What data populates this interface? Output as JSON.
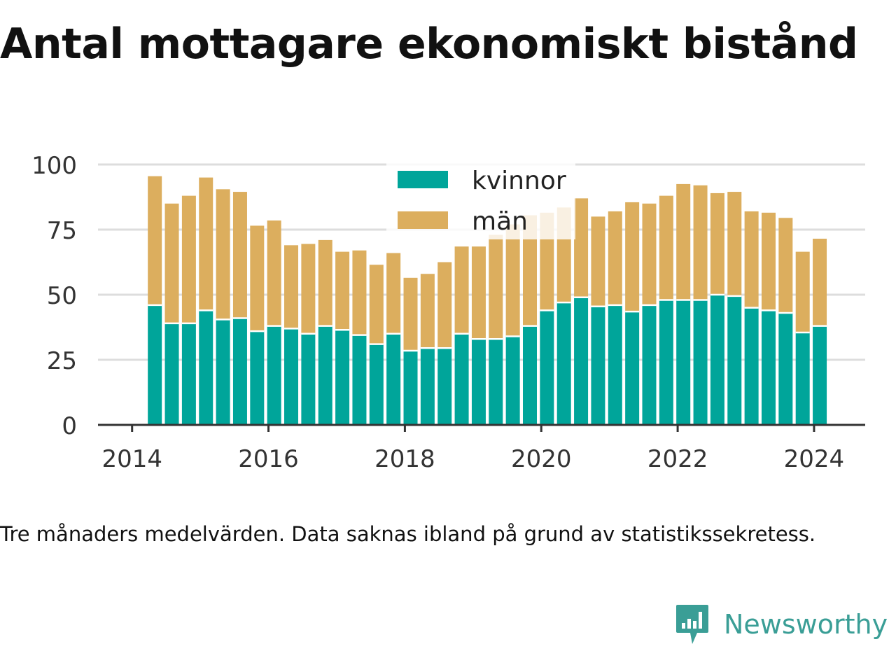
{
  "title": "Antal mottagare ekonomiskt bistånd",
  "caption": "Tre månaders medelvärden. Data saknas ibland på grund av statistikssekretess.",
  "brand": {
    "name": "Newsworthy"
  },
  "colors": {
    "kvinnor": "#00a59a",
    "man": "#dcae5e",
    "grid": "#dddddd",
    "axis": "#333333"
  },
  "chart_data": {
    "type": "bar",
    "stacked": true,
    "ylim": [
      0,
      100
    ],
    "yticks": [
      0,
      25,
      50,
      75,
      100
    ],
    "xticks": [
      2014,
      2016,
      2018,
      2020,
      2022,
      2024
    ],
    "xlim": [
      2013.5,
      2024.75
    ],
    "grid": true,
    "legend": "top-center",
    "x": [
      "2014-05",
      "2014-08",
      "2014-11",
      "2015-02",
      "2015-05",
      "2015-08",
      "2015-11",
      "2016-02",
      "2016-05",
      "2016-08",
      "2016-11",
      "2017-02",
      "2017-05",
      "2017-08",
      "2017-11",
      "2018-02",
      "2018-05",
      "2018-08",
      "2018-11",
      "2019-02",
      "2019-05",
      "2019-08",
      "2019-11",
      "2020-02",
      "2020-05",
      "2020-08",
      "2020-11",
      "2021-02",
      "2021-05",
      "2021-08",
      "2021-11",
      "2022-02",
      "2022-05",
      "2022-08",
      "2022-11",
      "2023-02",
      "2023-05",
      "2023-08",
      "2023-11",
      "2024-02"
    ],
    "series": [
      {
        "name": "kvinnor",
        "values": [
          46,
          39,
          39,
          44,
          40.5,
          41,
          36,
          38,
          37,
          35,
          38,
          36.5,
          34.5,
          31,
          35,
          28.5,
          29.5,
          29.5,
          35,
          33,
          33,
          34,
          38,
          44,
          47,
          49,
          45.5,
          46,
          43.5,
          46,
          48,
          48,
          48,
          50,
          49.5,
          45,
          44,
          43,
          35.5,
          38
        ]
      },
      {
        "name": "män",
        "values": [
          49.5,
          46,
          49,
          51,
          50,
          48.5,
          40.5,
          40.5,
          32,
          34.5,
          33,
          30,
          32.5,
          30.5,
          31,
          28,
          28.5,
          33,
          33.5,
          35.5,
          40,
          43,
          42.5,
          37.5,
          36.5,
          38,
          34.5,
          36,
          42,
          39,
          40,
          44.5,
          44,
          39,
          40,
          37,
          37.5,
          36.5,
          31,
          33.5
        ]
      }
    ]
  }
}
